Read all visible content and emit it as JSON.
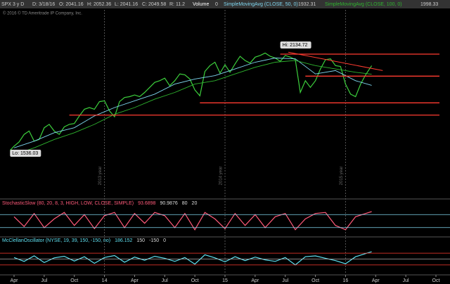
{
  "header": {
    "symbol": "SPX 3 y D",
    "date": "D: 3/18/16",
    "open": "O: 2041.16",
    "high": "H: 2052.36",
    "low": "L: 2041.16",
    "close": "C: 2049.58",
    "range": "R: 11.2",
    "volume_label": "Volume",
    "volume": "0",
    "copyright": "© 2016 © TD Ameritrade IP Company, Inc."
  },
  "chart_data": [
    {
      "type": "line",
      "xlim": [
        -1.4,
        43.4
      ],
      "ylim": [
        1260,
        2340
      ],
      "x": [
        -0.4,
        0,
        0.5,
        1,
        1.5,
        2,
        2.5,
        3,
        3.5,
        4,
        4.5,
        5,
        5.5,
        6,
        6.5,
        7,
        7.5,
        8,
        8.5,
        9,
        9.5,
        10,
        10.5,
        11,
        11.5,
        12,
        12.5,
        13,
        13.5,
        14,
        14.5,
        15,
        15.5,
        16,
        16.5,
        17,
        17.5,
        18,
        18.5,
        19,
        19.5,
        20,
        20.5,
        21,
        21.5,
        22,
        22.5,
        23,
        23.5,
        24,
        24.5,
        25,
        25.5,
        26,
        26.5,
        27,
        27.5,
        28,
        28.5,
        29,
        29.5,
        30,
        30.5,
        31,
        31.5,
        32,
        32.5,
        33,
        33.5,
        34,
        34.5,
        35,
        35.6
      ],
      "series": [
        {
          "color": "#3ccf3c",
          "values": [
            1545,
            1570,
            1595,
            1640,
            1660,
            1600,
            1610,
            1680,
            1700,
            1660,
            1640,
            1685,
            1700,
            1705,
            1750,
            1790,
            1800,
            1790,
            1835,
            1840,
            1780,
            1745,
            1835,
            1860,
            1865,
            1875,
            1865,
            1890,
            1920,
            1950,
            1960,
            1975,
            1930,
            1960,
            2000,
            1995,
            1970,
            1905,
            1870,
            2015,
            2050,
            2070,
            2005,
            2055,
            2010,
            2060,
            2105,
            2080,
            2065,
            2100,
            2110,
            2125,
            2105,
            2095,
            2075,
            2110,
            2100,
            2085,
            1890,
            1960,
            1920,
            1960,
            2030,
            2085,
            2090,
            2050,
            2045,
            1940,
            1880,
            1865,
            1940,
            1995,
            2049.58
          ]
        },
        {
          "name": "SimpleMovingAvg (CLOSE, 50, 0)",
          "color": "#7fd7f0",
          "x": [
            0,
            2,
            4,
            6,
            8,
            10,
            12,
            14,
            16,
            18,
            20,
            22,
            24,
            26,
            28,
            30,
            32,
            34,
            35.6
          ],
          "values": [
            1560,
            1600,
            1650,
            1680,
            1750,
            1800,
            1840,
            1880,
            1940,
            1970,
            1990,
            2030,
            2070,
            2095,
            2090,
            2000,
            2020,
            1960,
            1932.31
          ]
        },
        {
          "name": "SimpleMovingAvg (CLOSE, 100, 0)",
          "color": "#2fb52f",
          "x": [
            0,
            2,
            4,
            6,
            8,
            10,
            12,
            14,
            16,
            18,
            20,
            22,
            24,
            26,
            28,
            30,
            32,
            34,
            35.6
          ],
          "values": [
            1520,
            1560,
            1610,
            1650,
            1700,
            1760,
            1800,
            1850,
            1890,
            1940,
            1960,
            2000,
            2040,
            2070,
            2080,
            2050,
            2030,
            2010,
            1998.33
          ]
        }
      ],
      "levels": [
        {
          "value": 2118,
          "from": 26.5
        },
        {
          "value": 1987,
          "from": 29
        },
        {
          "value": 1828,
          "from": 18.5
        },
        {
          "value": 1755,
          "from": 5.5
        }
      ],
      "trendline": {
        "x": [
          27.3,
          36.7
        ],
        "values": [
          2130,
          2020
        ]
      },
      "annotations": [
        {
          "text": "Hi: 2134.72",
          "x": 26.5,
          "value": 2134.72
        },
        {
          "text": "Lo: 1536.03",
          "x": -0.4,
          "value": 1536.03
        }
      ],
      "year_markers": [
        {
          "value": 9,
          "label": "2013 year"
        },
        {
          "value": 21,
          "label": "2014 year"
        },
        {
          "value": 33,
          "label": "2015 year"
        }
      ]
    },
    {
      "type": "line",
      "title": "StochasticSlow (80, 20, 8, 3, HIGH, LOW, CLOSE, SIMPLE)",
      "d_value": 90.9876,
      "xlim": [
        -1.4,
        43.4
      ],
      "ylim": [
        -10,
        110
      ],
      "levels": [
        80,
        20
      ],
      "x": [
        0,
        1,
        2,
        3,
        4,
        5,
        6,
        7,
        8,
        9,
        10,
        11,
        12,
        13,
        14,
        15,
        16,
        17,
        18,
        19,
        20,
        21,
        22,
        23,
        24,
        25,
        26,
        27,
        28,
        29,
        30,
        31,
        32,
        33,
        34,
        35,
        35.6
      ],
      "series": [
        {
          "color": "#ff5a7a",
          "values": [
            70,
            25,
            85,
            20,
            60,
            90,
            30,
            80,
            15,
            75,
            90,
            20,
            85,
            40,
            90,
            75,
            20,
            85,
            10,
            90,
            60,
            15,
            85,
            30,
            80,
            20,
            70,
            85,
            10,
            60,
            85,
            90,
            30,
            10,
            70,
            85,
            93.6898
          ]
        }
      ]
    },
    {
      "type": "line",
      "title": "McClellanOscillator (NYSE, 19, 39, 150, -150, no)",
      "xlim": [
        -1.4,
        43.4
      ],
      "ylim": [
        -350,
        350
      ],
      "levels": [
        150,
        -150,
        0
      ],
      "x": [
        0,
        1,
        2,
        3,
        4,
        5,
        6,
        7,
        8,
        9,
        10,
        11,
        12,
        13,
        14,
        15,
        16,
        17,
        18,
        19,
        20,
        21,
        22,
        23,
        24,
        25,
        26,
        27,
        28,
        29,
        30,
        31,
        32,
        33,
        34,
        35,
        35.6
      ],
      "series": [
        {
          "color": "#5fe0f0",
          "values": [
            40,
            -60,
            80,
            -90,
            30,
            70,
            -50,
            60,
            -110,
            40,
            90,
            -80,
            50,
            -30,
            70,
            20,
            -60,
            40,
            -130,
            110,
            30,
            -70,
            60,
            -40,
            50,
            -20,
            -60,
            40,
            -150,
            60,
            80,
            20,
            -40,
            -120,
            60,
            140,
            186.152
          ]
        }
      ],
      "xticks": [
        {
          "value": 0,
          "label": "Apr"
        },
        {
          "value": 3,
          "label": "Jul"
        },
        {
          "value": 6,
          "label": "Oct"
        },
        {
          "value": 9,
          "label": "14"
        },
        {
          "value": 12,
          "label": "Apr"
        },
        {
          "value": 15,
          "label": "Jul"
        },
        {
          "value": 18,
          "label": "Oct"
        },
        {
          "value": 21,
          "label": "15"
        },
        {
          "value": 24,
          "label": "Apr"
        },
        {
          "value": 27,
          "label": "Jul"
        },
        {
          "value": 30,
          "label": "Oct"
        },
        {
          "value": 33,
          "label": "16"
        },
        {
          "value": 36,
          "label": "Apr"
        },
        {
          "value": 39,
          "label": "Jul"
        },
        {
          "value": 42,
          "label": "Oct"
        }
      ]
    }
  ]
}
